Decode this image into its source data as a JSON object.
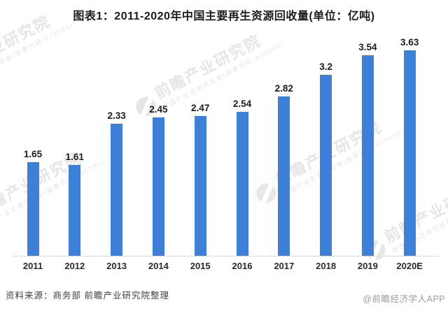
{
  "title": "图表1：2011-2020年中国主要再生资源回收量(单位：亿吨)",
  "chart_data": {
    "type": "bar",
    "title": "图表1：2011-2020年中国主要再生资源回收量(单位：亿吨)",
    "categories": [
      "2011",
      "2012",
      "2013",
      "2014",
      "2015",
      "2016",
      "2017",
      "2018",
      "2019",
      "2020E"
    ],
    "values": [
      1.65,
      1.61,
      2.33,
      2.45,
      2.47,
      2.54,
      2.82,
      3.2,
      3.54,
      3.63
    ],
    "value_labels": [
      "1.65",
      "1.61",
      "2.33",
      "2.45",
      "2.47",
      "2.54",
      "2.82",
      "3.2",
      "3.54",
      "3.63"
    ],
    "xlabel": "",
    "ylabel": "",
    "unit": "亿吨",
    "ylim": [
      0,
      4
    ],
    "grid": false,
    "legend": false,
    "bar_color": "#3E80D8"
  },
  "footer": {
    "source": "资料来源：商务部 前瞻产业研究院整理",
    "credit": "@前瞻经济学人APP"
  },
  "watermark": {
    "brand": "前瞻产业研究院",
    "subtitle": "中国产业咨询领导者(股票代码:839599)",
    "logo": "qianzhan-logo"
  },
  "colors": {
    "bar": "#3E80D8",
    "axis_line": "#d9d9d9",
    "text_dark": "#1c1c1c",
    "source_text": "#3f3f3f",
    "credit_text": "#9b9b9b",
    "watermark": "#e7e5e5"
  }
}
